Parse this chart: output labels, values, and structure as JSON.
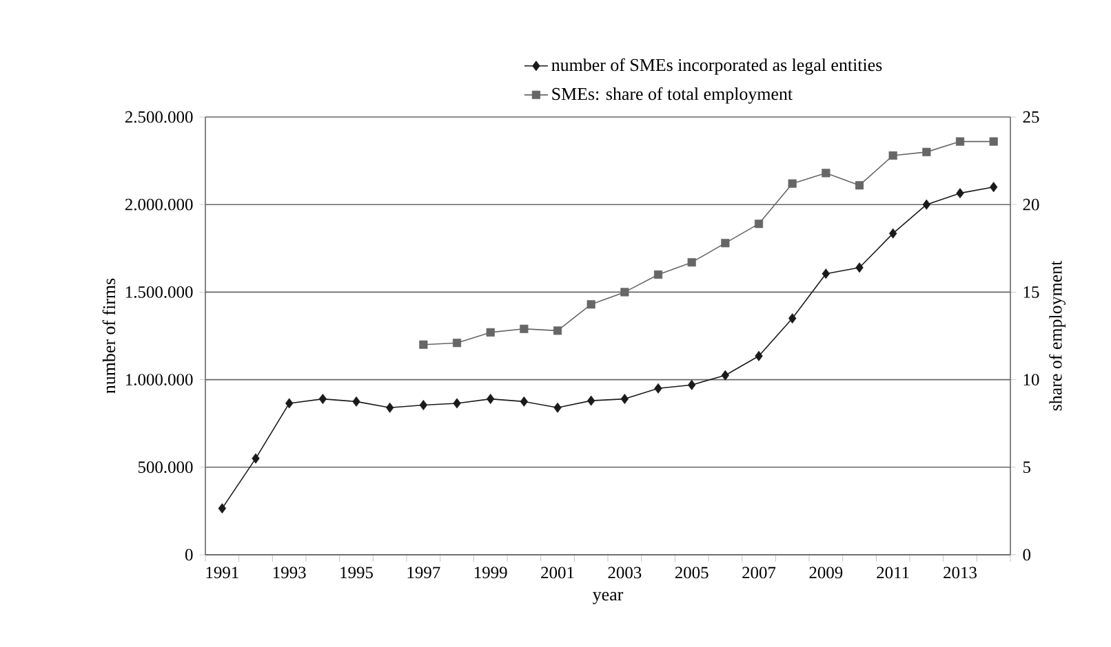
{
  "chart_data": {
    "type": "line",
    "xlabel": "year",
    "ylabel": "number of firms",
    "y2label": "share of employment",
    "categories": [
      "1991",
      null,
      "1993",
      null,
      "1995",
      null,
      "1997",
      null,
      "1999",
      null,
      "2001",
      null,
      "2003",
      null,
      "2005",
      null,
      "2007",
      null,
      "2009",
      null,
      "2011",
      null,
      "2013",
      null
    ],
    "series": [
      {
        "name": "number of SMEs incorporated as legal entities",
        "color": "#1a1a1a",
        "marker": "diamond",
        "values": [
          265000,
          550000,
          865000,
          890000,
          875000,
          840000,
          855000,
          865000,
          890000,
          875000,
          840000,
          880000,
          890000,
          950000,
          970000,
          1025000,
          1135000,
          1350000,
          1605000,
          1640000,
          1835000,
          2000000,
          2065000,
          2100000
        ]
      },
      {
        "name": "SMEs: share of total employment",
        "color": "#666666",
        "marker": "square",
        "axis": "y2",
        "values": [
          null,
          null,
          null,
          null,
          null,
          null,
          12.0,
          12.1,
          12.7,
          12.9,
          12.8,
          14.3,
          15.0,
          16.0,
          16.7,
          17.8,
          18.9,
          21.2,
          21.8,
          21.1,
          22.8,
          23.0,
          23.6,
          23.6
        ]
      }
    ],
    "ylim": [
      0,
      2500000
    ],
    "yticks": [
      0,
      {
        "value": 500000,
        "label": "500.000"
      },
      {
        "value": 1000000,
        "label": "1.000.000"
      },
      {
        "value": 1500000,
        "label": "1.500.000"
      },
      {
        "value": 2000000,
        "label": "2.000.000"
      },
      {
        "value": 2500000,
        "label": "2.500.000"
      }
    ],
    "y2lim": [
      0,
      25
    ],
    "y2ticks": [
      0,
      5,
      10,
      15,
      20,
      25
    ],
    "grid": "y",
    "legend": "top",
    "line_style": "solid"
  }
}
